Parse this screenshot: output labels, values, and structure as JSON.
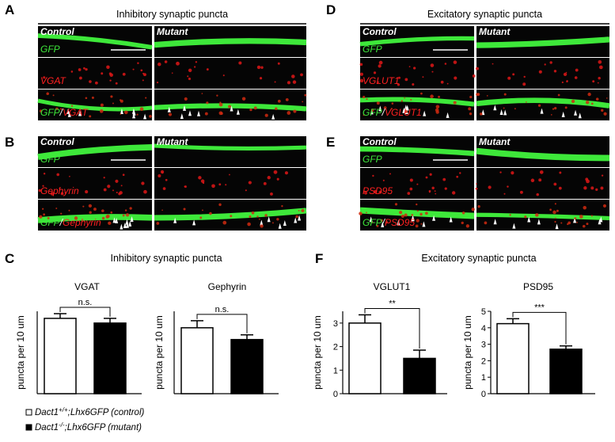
{
  "panels": [
    {
      "letter": "A",
      "title": "Inhibitory synaptic puncta",
      "columns": [
        "Control",
        "Mutant"
      ],
      "rows": [
        "GFP",
        "VGAT"
      ],
      "merge": [
        "GFP",
        "/",
        "VGAT"
      ]
    },
    {
      "letter": "B",
      "columns": [
        "Control",
        "Mutant"
      ],
      "rows": [
        "GFP",
        "Gephyrin"
      ],
      "merge": [
        "GFP",
        "/",
        "Gephyrin"
      ]
    },
    {
      "letter": "D",
      "title": "Excitatory synaptic puncta",
      "columns": [
        "Control",
        "Mutant"
      ],
      "rows": [
        "GFP",
        "VGLUT1"
      ],
      "merge": [
        "GFP",
        "/",
        "VGLUT1"
      ]
    },
    {
      "letter": "E",
      "columns": [
        "Control",
        "Mutant"
      ],
      "rows": [
        "GFP",
        "PSD95"
      ],
      "merge": [
        "GFP",
        "/",
        "PSD95"
      ]
    }
  ],
  "sections": [
    {
      "letter": "C",
      "title": "Inhibitory synaptic puncta"
    },
    {
      "letter": "F",
      "title": "Excitatory synaptic puncta"
    }
  ],
  "legend": [
    {
      "parts": [
        "Dact1",
        "+/+",
        ";Lhx6GFP (control)"
      ],
      "color": "#ffffff"
    },
    {
      "parts": [
        "Dact1",
        "-/-",
        ";Lhx6GFP (mutant)"
      ],
      "color": "#000000"
    }
  ],
  "chart_data": [
    {
      "type": "bar",
      "title": "VGAT",
      "ylabel": "puncta per 10 um",
      "values": [
        3.2,
        3.0
      ],
      "errors": [
        0.2,
        0.2
      ],
      "colors": [
        "#ffffff",
        "#000000"
      ],
      "annotation": "n.s.",
      "ylim": [
        0,
        3.5
      ]
    },
    {
      "type": "bar",
      "title": "Gephyrin",
      "ylabel": "puncta per 10 um",
      "values": [
        2.8,
        2.3
      ],
      "errors": [
        0.3,
        0.2
      ],
      "colors": [
        "#ffffff",
        "#000000"
      ],
      "annotation": "n.s.",
      "ylim": [
        0,
        3.5
      ]
    },
    {
      "type": "bar",
      "title": "VGLUT1",
      "ylabel": "puncta per 10 um",
      "values": [
        3.0,
        1.5
      ],
      "errors": [
        0.35,
        0.35
      ],
      "colors": [
        "#ffffff",
        "#000000"
      ],
      "annotation": "**",
      "ylim": [
        0,
        3.5
      ],
      "yticks": [
        0,
        1,
        2,
        3
      ]
    },
    {
      "type": "bar",
      "title": "PSD95",
      "ylabel": "puncta per 10 um",
      "values": [
        4.25,
        2.7
      ],
      "errors": [
        0.3,
        0.2
      ],
      "colors": [
        "#ffffff",
        "#000000"
      ],
      "annotation": "***",
      "ylim": [
        0,
        5
      ],
      "yticks": [
        0,
        1,
        2,
        3,
        4,
        5
      ]
    }
  ]
}
